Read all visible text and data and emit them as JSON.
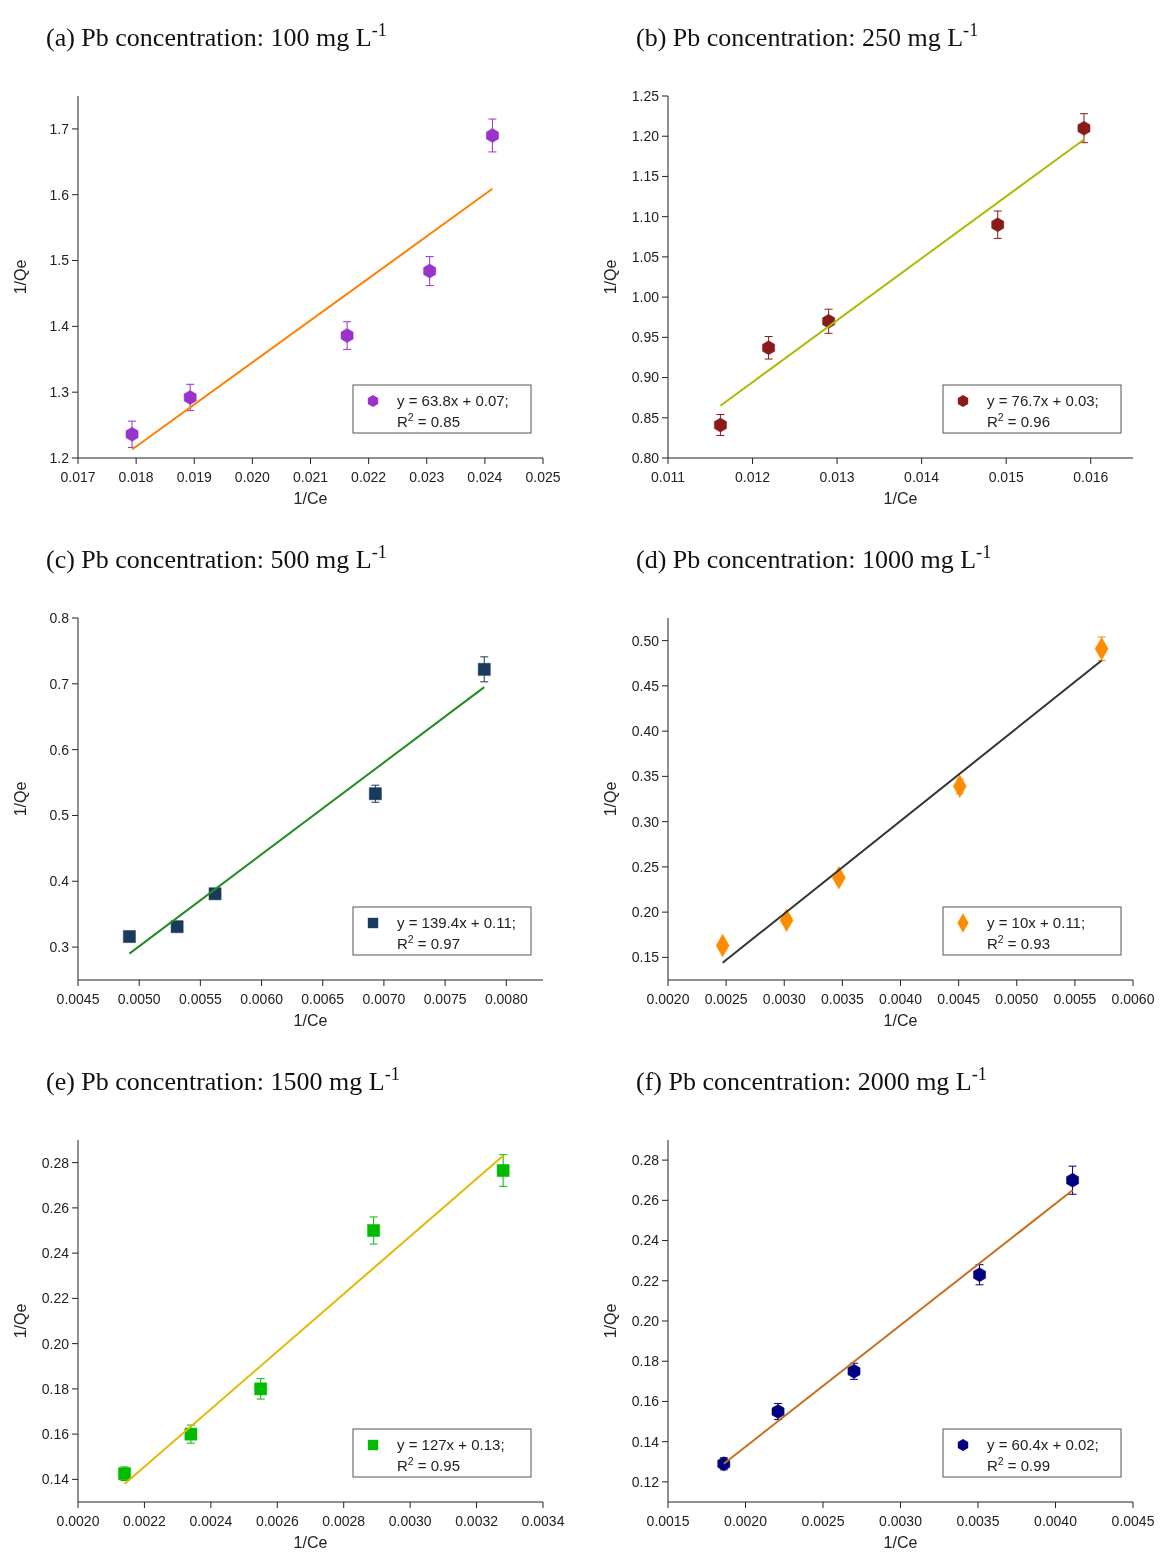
{
  "chart_data": [
    {
      "type": "scatter",
      "title": "(a)  Pb concentration: 100 mg L$^{-1}$",
      "xlabel": "1/Ce",
      "ylabel": "1/Qe",
      "legend": "bottom right",
      "xlim": [
        0.017,
        0.025
      ],
      "xticks": [
        0.017,
        0.018,
        0.019,
        {
          "value": 0.02,
          "label": "0.020"
        },
        0.021,
        0.022,
        0.023,
        0.024,
        0.025
      ],
      "ylim": [
        1.2,
        1.75
      ],
      "yticks": [
        1.2,
        1.3,
        1.4,
        1.5,
        1.6,
        1.7
      ],
      "series": [
        {
          "name": "y = 63.8x + 0.07;\nR$^{2}$ = 0.85",
          "color": "#9933cc",
          "x": [
            0.01793,
            0.01893,
            0.02163,
            0.02305,
            0.02413
          ],
          "values": [
            1.236,
            1.292,
            1.386,
            1.484,
            1.69
          ],
          "errors": [
            0.02,
            0.02,
            0.021,
            0.022,
            0.025
          ]
        },
        {
          "type": "line",
          "color": "#ff8000",
          "line_style": "solid",
          "x": [
            0.01793,
            0.02413
          ],
          "values": [
            1.213,
            1.609
          ]
        }
      ]
    },
    {
      "type": "scatter",
      "title": "(b)  Pb concentration: 250 mg L$^{-1}$",
      "xlabel": "1/Ce",
      "ylabel": "1/Qe",
      "legend": "bottom right",
      "xlim": [
        0.011,
        0.0165
      ],
      "xticks": [
        0.011,
        0.012,
        0.013,
        0.014,
        0.015,
        0.016
      ],
      "ylim": [
        0.8,
        1.25
      ],
      "yticks": [
        {
          "value": 0.8,
          "label": "0.80"
        },
        0.85,
        {
          "value": 0.9,
          "label": "0.90"
        },
        0.95,
        {
          "value": 1,
          "label": "1.00"
        },
        1.05,
        {
          "value": 1.1,
          "label": "1.10"
        },
        1.15,
        {
          "value": 1.2,
          "label": "1.20"
        },
        1.25
      ],
      "series": [
        {
          "name": "y = 76.7x + 0.03;\nR$^{2}$ = 0.96",
          "color": "#8b1a1a",
          "x": [
            0.01162,
            0.01219,
            0.0129,
            0.0149,
            0.01592
          ],
          "values": [
            0.841,
            0.937,
            0.97,
            1.09,
            1.21
          ],
          "errors": [
            0.013,
            0.014,
            0.015,
            0.017,
            0.018
          ]
        },
        {
          "type": "line",
          "color": "#aabb00",
          "line_style": "solid",
          "x": [
            0.01162,
            0.01592
          ],
          "values": [
            0.865,
            1.196
          ]
        }
      ]
    },
    {
      "type": "scatter",
      "title": "(c)  Pb concentration: 500 mg L$^{-1}$",
      "xlabel": "1/Ce",
      "ylabel": "1/Qe",
      "legend": "bottom right",
      "xlim": [
        0.0045,
        0.0083
      ],
      "xticks": [
        0.0045,
        {
          "value": 0.005,
          "label": "0.0050"
        },
        0.0055,
        {
          "value": 0.006,
          "label": "0.0060"
        },
        0.0065,
        {
          "value": 0.007,
          "label": "0.0070"
        },
        0.0075,
        {
          "value": 0.008,
          "label": "0.0080"
        }
      ],
      "ylim": [
        0.25,
        0.8
      ],
      "yticks": [
        0.3,
        0.4,
        0.5,
        0.6,
        0.7,
        0.8
      ],
      "series": [
        {
          "name": "y = 139.4x + 0.11;\nR$^{2}$ = 0.97",
          "color": "#1a3a5c",
          "marker": "square",
          "x": [
            0.00492,
            0.00531,
            0.00562,
            0.00693,
            0.00782
          ],
          "values": [
            0.316,
            0.331,
            0.381,
            0.533,
            0.722
          ],
          "errors": [
            0.006,
            0.006,
            0.007,
            0.013,
            0.019
          ]
        },
        {
          "type": "line",
          "color": "#228b22",
          "line_style": "solid",
          "x": [
            0.00492,
            0.00782
          ],
          "values": [
            0.29,
            0.695
          ]
        }
      ]
    },
    {
      "type": "scatter",
      "title": "(d)  Pb concentration: 1000 mg L$^{-1}$",
      "xlabel": "1/Ce",
      "ylabel": "1/Qe",
      "legend": "bottom right",
      "xlim": [
        0.002,
        0.006
      ],
      "xticks": [
        {
          "value": 0.002,
          "label": "0.0020"
        },
        0.0025,
        {
          "value": 0.003,
          "label": "0.0030"
        },
        0.0035,
        {
          "value": 0.004,
          "label": "0.0040"
        },
        0.0045,
        {
          "value": 0.005,
          "label": "0.0050"
        },
        0.0055,
        {
          "value": 0.006,
          "label": "0.0060"
        }
      ],
      "ylim": [
        0.125,
        0.525
      ],
      "yticks": [
        0.15,
        {
          "value": 0.2,
          "label": "0.20"
        },
        0.25,
        {
          "value": 0.3,
          "label": "0.30"
        },
        0.35,
        {
          "value": 0.4,
          "label": "0.40"
        },
        0.45,
        {
          "value": 0.5,
          "label": "0.50"
        }
      ],
      "series": [
        {
          "name": "y = 10x + 0.11;\nR$^{2}$ = 0.93",
          "color": "#ff8c00",
          "marker": "diamond",
          "x": [
            0.00247,
            0.00302,
            0.00347,
            0.00451,
            0.00573
          ],
          "values": [
            0.163,
            0.191,
            0.238,
            0.339,
            0.491
          ],
          "errors": [
            0.004,
            0.005,
            0.005,
            0.008,
            0.013
          ]
        },
        {
          "type": "line",
          "color": "#333333",
          "line_style": "solid",
          "x": [
            0.00247,
            0.00573
          ],
          "values": [
            0.144,
            0.478
          ]
        }
      ]
    },
    {
      "type": "scatter",
      "title": "(e)  Pb concentration: 1500 mg L$^{-1}$",
      "xlabel": "1/Ce",
      "ylabel": "1/Qe",
      "legend": "bottom right",
      "xlim": [
        0.002,
        0.0034
      ],
      "xticks": [
        {
          "value": 0.002,
          "label": "0.0020"
        },
        0.0022,
        0.0024,
        0.0026,
        0.0028,
        {
          "value": 0.003,
          "label": "0.0030"
        },
        0.0032,
        0.0034
      ],
      "ylim": [
        0.13,
        0.29
      ],
      "yticks": [
        0.14,
        0.16,
        0.18,
        {
          "value": 0.2,
          "label": "0.20"
        },
        0.22,
        0.24,
        0.26,
        0.28
      ],
      "series": [
        {
          "name": "y = 127x + 0.13;\nR$^{2}$ = 0.95",
          "color": "#00bb00",
          "marker": "square",
          "x": [
            0.00214,
            0.00234,
            0.00255,
            0.00289,
            0.00328
          ],
          "values": [
            0.1425,
            0.16,
            0.18,
            0.25,
            0.2765
          ],
          "errors": [
            0.003,
            0.004,
            0.0045,
            0.006,
            0.007
          ]
        },
        {
          "type": "line",
          "color": "#e6b800",
          "line_style": "solid",
          "x": [
            0.00214,
            0.00328
          ],
          "values": [
            0.138,
            0.283
          ]
        }
      ]
    },
    {
      "type": "scatter",
      "title": "(f)  Pb concentration: 2000 mg L$^{-1}$",
      "xlabel": "1/Ce",
      "ylabel": "1/Qe",
      "legend": "bottom right",
      "xlim": [
        0.0015,
        0.0045
      ],
      "xticks": [
        0.0015,
        {
          "value": 0.002,
          "label": "0.0020"
        },
        0.0025,
        {
          "value": 0.003,
          "label": "0.0030"
        },
        0.0035,
        {
          "value": 0.004,
          "label": "0.0040"
        },
        0.0045
      ],
      "ylim": [
        0.11,
        0.29
      ],
      "yticks": [
        0.12,
        0.14,
        0.16,
        0.18,
        {
          "value": 0.2,
          "label": "0.20"
        },
        0.22,
        0.24,
        0.26,
        0.28
      ],
      "series": [
        {
          "name": "y = 60.4x + 0.02;\nR$^{2}$ = 0.99",
          "color": "#000080",
          "x": [
            0.00186,
            0.00221,
            0.0027,
            0.00351,
            0.00411
          ],
          "values": [
            0.129,
            0.155,
            0.175,
            0.223,
            0.27
          ],
          "errors": [
            0.003,
            0.004,
            0.004,
            0.005,
            0.007
          ]
        },
        {
          "type": "line",
          "color": "#c87020",
          "line_style": "solid",
          "x": [
            0.00186,
            0.00411
          ],
          "values": [
            0.129,
            0.265
          ]
        }
      ]
    }
  ]
}
